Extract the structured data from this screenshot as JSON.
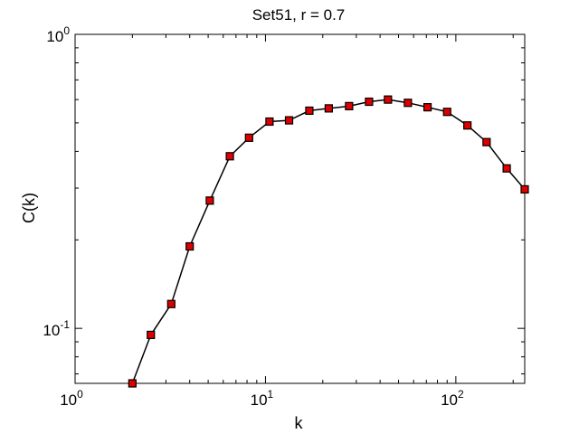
{
  "chart_data": {
    "type": "line",
    "title": "Set51, r = 0.7",
    "xlabel": "k",
    "ylabel": "C(k)",
    "xscale": "log",
    "yscale": "log",
    "xlim": [
      1,
      230
    ],
    "ylim": [
      0.065,
      1
    ],
    "grid": false,
    "legend": "none",
    "x_ticks": [
      {
        "value": 1,
        "base": "10",
        "exp": "0"
      },
      {
        "value": 10,
        "base": "10",
        "exp": "1"
      },
      {
        "value": 100,
        "base": "10",
        "exp": "2"
      }
    ],
    "y_ticks": [
      {
        "value": 0.1,
        "base": "10",
        "exp": "-1"
      },
      {
        "value": 1,
        "base": "10",
        "exp": "0"
      }
    ],
    "series": [
      {
        "marker": "square",
        "marker_color": "#dd0000",
        "line_color": "#000000",
        "x": [
          2,
          2.5,
          3.2,
          4,
          5.1,
          6.5,
          8.2,
          10.5,
          13.3,
          17,
          21.5,
          27.5,
          35,
          44,
          56,
          71,
          90,
          115,
          145,
          185,
          230
        ],
        "y": [
          0.065,
          0.095,
          0.121,
          0.19,
          0.272,
          0.385,
          0.445,
          0.505,
          0.51,
          0.55,
          0.56,
          0.57,
          0.59,
          0.6,
          0.585,
          0.565,
          0.545,
          0.49,
          0.43,
          0.35,
          0.297
        ]
      }
    ]
  }
}
